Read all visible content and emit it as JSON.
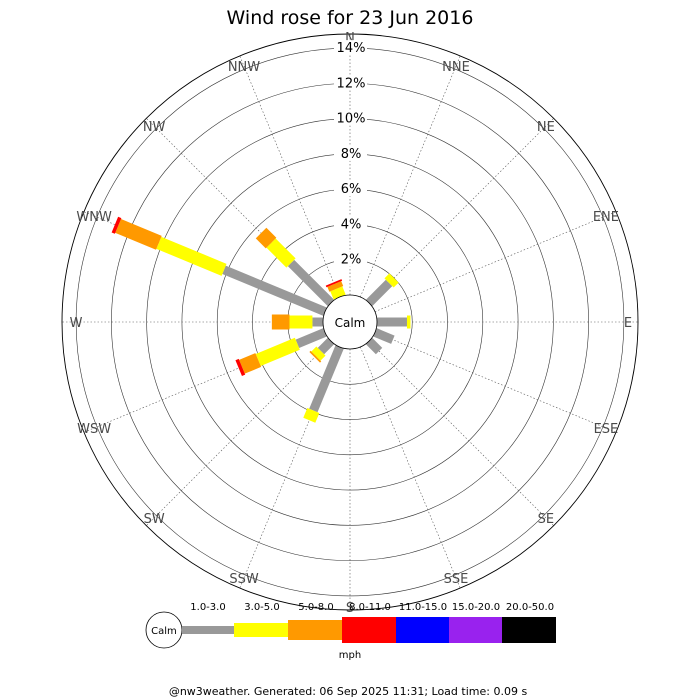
{
  "chart_data": {
    "type": "wind-rose",
    "title": "Wind rose for 23 Jun 2016",
    "directions": [
      "N",
      "NNE",
      "NE",
      "ENE",
      "E",
      "ESE",
      "SE",
      "SSE",
      "S",
      "SSW",
      "SW",
      "WSW",
      "W",
      "WNW",
      "NW",
      "NNW"
    ],
    "radial_ticks": [
      "2%",
      "4%",
      "6%",
      "8%",
      "10%",
      "12%",
      "14%"
    ],
    "radial_tick_values": [
      2,
      4,
      6,
      8,
      10,
      12,
      14
    ],
    "radial_max": 14.8,
    "calm_label": "Calm",
    "speed_bins": [
      {
        "label": "1.0-3.0",
        "color": "#999999"
      },
      {
        "label": "3.0-5.0",
        "color": "#ffff00"
      },
      {
        "label": "5.0-8.0",
        "color": "#ff9900"
      },
      {
        "label": "8.0-11.0",
        "color": "#ff0000"
      },
      {
        "label": "11.0-15.0",
        "color": "#0000ff"
      },
      {
        "label": "15.0-20.0",
        "color": "#9922ee"
      },
      {
        "label": "20.0-50.0",
        "color": "#000000"
      }
    ],
    "series": [
      {
        "direction": "N",
        "values": [
          0,
          0,
          0,
          0,
          0,
          0,
          0
        ]
      },
      {
        "direction": "NNE",
        "values": [
          0,
          0,
          0,
          0,
          0,
          0,
          0
        ]
      },
      {
        "direction": "NE",
        "values": [
          1.6,
          0.4,
          0,
          0,
          0,
          0,
          0
        ]
      },
      {
        "direction": "ENE",
        "values": [
          0,
          0,
          0,
          0,
          0,
          0,
          0
        ]
      },
      {
        "direction": "E",
        "values": [
          1.7,
          0.2,
          0,
          0,
          0,
          0,
          0
        ]
      },
      {
        "direction": "ESE",
        "values": [
          1.1,
          0,
          0,
          0,
          0,
          0,
          0
        ]
      },
      {
        "direction": "SE",
        "values": [
          0.8,
          0,
          0,
          0,
          0,
          0,
          0
        ]
      },
      {
        "direction": "SSE",
        "values": [
          0,
          0,
          0,
          0,
          0,
          0,
          0
        ]
      },
      {
        "direction": "S",
        "values": [
          0,
          0,
          0,
          0,
          0,
          0,
          0
        ]
      },
      {
        "direction": "SSW",
        "values": [
          3.9,
          0.6,
          0,
          0,
          0,
          0,
          0
        ]
      },
      {
        "direction": "SW",
        "values": [
          0.8,
          0.4,
          0.1,
          0,
          0,
          0,
          0
        ]
      },
      {
        "direction": "WSW",
        "values": [
          1.7,
          2.4,
          1.0,
          0.2,
          0,
          0,
          0
        ]
      },
      {
        "direction": "W",
        "values": [
          0.6,
          1.3,
          1.0,
          0,
          0,
          0,
          0
        ]
      },
      {
        "direction": "WNW",
        "values": [
          6.2,
          4.0,
          2.5,
          0.2,
          0,
          0,
          0
        ]
      },
      {
        "direction": "NW",
        "values": [
          3.2,
          1.6,
          0.8,
          0,
          0,
          0,
          0
        ]
      },
      {
        "direction": "NNW",
        "values": [
          0,
          0.5,
          0.3,
          0.1,
          0,
          0,
          0
        ]
      }
    ],
    "legend_unit": "mph",
    "legend_calm": "Calm"
  },
  "footer": "@nw3weather. Generated: 06 Sep 2025 11:31; Load time: 0.09 s"
}
